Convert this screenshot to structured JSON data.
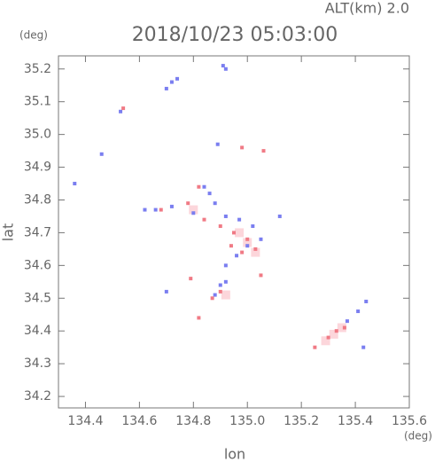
{
  "chart_data": {
    "type": "scatter",
    "title": "2018/10/23 05:03:00",
    "subtitle": "ALT(km) 2.0",
    "y_unit": "(deg)",
    "x_unit": "(deg)",
    "xlabel": "lon",
    "ylabel": "lat",
    "xlim": [
      134.3,
      135.6
    ],
    "ylim": [
      34.165,
      35.24
    ],
    "xticks": [
      134.4,
      134.6,
      134.8,
      {
        "value": 135.0,
        "label": "135.0"
      },
      135.2,
      135.4,
      135.6
    ],
    "yticks": [
      34.2,
      34.3,
      34.4,
      34.5,
      34.6,
      34.7,
      34.8,
      34.9,
      {
        "value": 35.0,
        "label": "35.0"
      },
      35.1,
      35.2
    ],
    "series": [
      {
        "color": "#fcd6db",
        "x": [
          135.32,
          135.29,
          135.35,
          134.92,
          135.0,
          134.8,
          134.97,
          135.03
        ],
        "values": [
          34.39,
          34.37,
          34.41,
          34.51,
          34.67,
          34.77,
          34.7,
          34.64
        ]
      },
      {
        "color": "#7a7ef0",
        "x": [
          134.72,
          134.7,
          134.74,
          134.91,
          134.92,
          134.53,
          134.46,
          134.89,
          134.84,
          134.86,
          134.62,
          134.66,
          134.72,
          134.8,
          134.88,
          134.92,
          134.97,
          135.02,
          135.05,
          135.0,
          134.96,
          134.92,
          134.9,
          134.88,
          134.92,
          135.12,
          135.37,
          135.41,
          135.44,
          135.43,
          134.7,
          134.36
        ],
        "values": [
          35.16,
          35.14,
          35.17,
          35.21,
          35.2,
          35.07,
          34.94,
          34.97,
          34.84,
          34.82,
          34.77,
          34.77,
          34.78,
          34.76,
          34.79,
          34.75,
          34.74,
          34.72,
          34.68,
          34.66,
          34.63,
          34.6,
          34.54,
          34.51,
          34.55,
          34.75,
          34.43,
          34.46,
          34.49,
          34.35,
          34.52,
          34.85
        ]
      },
      {
        "color": "#f07a85",
        "x": [
          134.54,
          134.98,
          135.06,
          134.82,
          134.68,
          134.78,
          134.84,
          134.9,
          134.95,
          135.0,
          135.03,
          134.98,
          134.94,
          134.9,
          134.87,
          134.82,
          135.05,
          135.25,
          135.3,
          135.33,
          135.36,
          134.79
        ],
        "values": [
          35.08,
          34.96,
          34.95,
          34.84,
          34.77,
          34.79,
          34.74,
          34.72,
          34.7,
          34.68,
          34.65,
          34.64,
          34.66,
          34.52,
          34.5,
          34.44,
          34.57,
          34.35,
          34.38,
          34.4,
          34.41,
          34.56
        ]
      }
    ]
  }
}
